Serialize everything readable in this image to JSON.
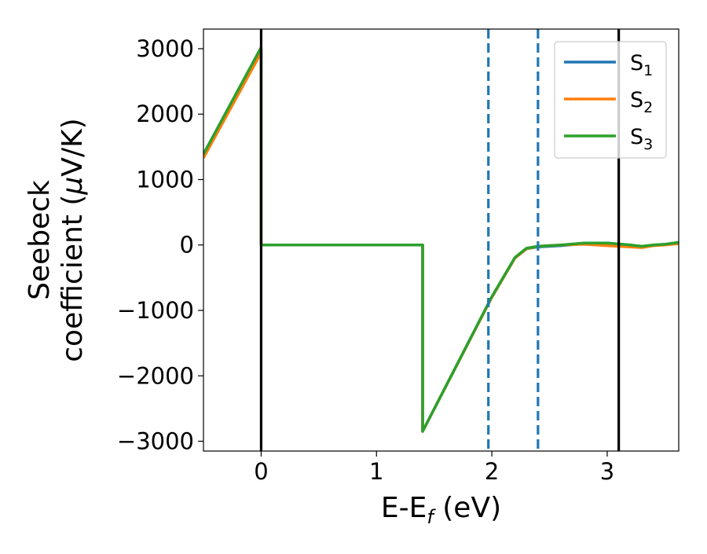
{
  "chart_data": {
    "type": "line",
    "title": "",
    "xlabel": "E-E",
    "xlabel_subscript": "f",
    "xlabel_units": " (eV)",
    "ylabel_line1": "Seebeck",
    "ylabel_line2": "coefficient  (",
    "ylabel_mu": "μ",
    "ylabel_units": "V/K)",
    "xlim": [
      -0.5,
      3.62
    ],
    "ylim": [
      -3150,
      3300
    ],
    "xticks": [
      0,
      1,
      2,
      3
    ],
    "yticks": [
      -3000,
      -2000,
      -1000,
      0,
      1000,
      2000,
      3000
    ],
    "xtick_labels": [
      "0",
      "1",
      "2",
      "3"
    ],
    "ytick_labels": [
      "−3000",
      "−2000",
      "−1000",
      "0",
      "1000",
      "2000",
      "3000"
    ],
    "legend_position": "top-right",
    "grid": false,
    "vertical_lines": [
      {
        "x": 0.0,
        "style": "solid",
        "color": "#000000"
      },
      {
        "x": 3.1,
        "style": "solid",
        "color": "#000000"
      },
      {
        "x": 1.97,
        "style": "dashed",
        "color": "#1f77b4"
      },
      {
        "x": 2.4,
        "style": "dashed",
        "color": "#1f77b4"
      }
    ],
    "series": [
      {
        "name": "S",
        "subscript": "1",
        "color": "#1f77b4",
        "x": [
          -0.5,
          0.0,
          0.0,
          1.4,
          1.4,
          2.0,
          2.2,
          2.3,
          2.4,
          2.6,
          2.8,
          3.0,
          3.2,
          3.3,
          3.4,
          3.5,
          3.62
        ],
        "y": [
          1380,
          3000,
          0,
          0,
          -2850,
          -800,
          -200,
          -60,
          -30,
          -10,
          20,
          30,
          0,
          -30,
          0,
          10,
          30
        ]
      },
      {
        "name": "S",
        "subscript": "2",
        "color": "#ff7f0e",
        "x": [
          -0.5,
          0.0,
          0.0,
          1.4,
          1.4,
          2.0,
          2.2,
          2.3,
          2.4,
          2.6,
          2.8,
          3.0,
          3.2,
          3.3,
          3.4,
          3.5,
          3.62
        ],
        "y": [
          1330,
          2940,
          0,
          0,
          -2850,
          -800,
          -200,
          -60,
          -20,
          0,
          10,
          -10,
          -30,
          -40,
          -10,
          0,
          20
        ]
      },
      {
        "name": "S",
        "subscript": "3",
        "color": "#2ca02c",
        "x": [
          -0.5,
          0.0,
          0.0,
          1.4,
          1.4,
          2.0,
          2.2,
          2.3,
          2.4,
          2.6,
          2.8,
          3.0,
          3.2,
          3.3,
          3.4,
          3.5,
          3.62
        ],
        "y": [
          1390,
          3020,
          0,
          0,
          -2850,
          -790,
          -190,
          -50,
          -20,
          0,
          30,
          30,
          0,
          -20,
          0,
          10,
          40
        ]
      }
    ]
  }
}
